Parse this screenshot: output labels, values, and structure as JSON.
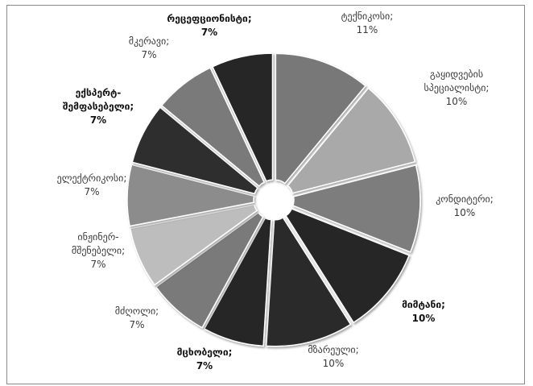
{
  "chart_data": {
    "type": "pie",
    "exploded": true,
    "title": "",
    "slices": [
      {
        "label": [
          "ტექნიკოსი;",
          "11%"
        ],
        "value": 11,
        "color": "#787878",
        "bold": false
      },
      {
        "label": [
          "გაყიდვების",
          "სპეციალისტი;",
          "10%"
        ],
        "value": 10,
        "color": "#a9a9a9",
        "bold": false
      },
      {
        "label": [
          "კონდიტერი;",
          "10%"
        ],
        "value": 10,
        "color": "#7d7d7d",
        "bold": false
      },
      {
        "label": [
          "მიმტანი;",
          "10%"
        ],
        "value": 10,
        "color": "#262626",
        "bold": true
      },
      {
        "label": [
          "მზარეული;",
          "10%"
        ],
        "value": 10,
        "color": "#2b2b2b",
        "bold": false
      },
      {
        "label": [
          "მცხობელი;",
          "7%"
        ],
        "value": 7,
        "color": "#262626",
        "bold": true
      },
      {
        "label": [
          "მძღოლი;",
          "7%"
        ],
        "value": 7,
        "color": "#7a7a7a",
        "bold": false
      },
      {
        "label": [
          "ინჟინერ-",
          "მშენებელი;",
          "7%"
        ],
        "value": 7,
        "color": "#bdbdbd",
        "bold": false
      },
      {
        "label": [
          "ელექტრიკოსი;",
          "7%"
        ],
        "value": 7,
        "color": "#8c8c8c",
        "bold": false
      },
      {
        "label": [
          "ექსპერტ-",
          "შემფასებელი;",
          "7%"
        ],
        "value": 7,
        "color": "#2d2d2d",
        "bold": true
      },
      {
        "label": [
          "მკერავი;",
          "7%"
        ],
        "value": 7,
        "color": "#7a7a7a",
        "bold": false
      },
      {
        "label": [
          "რეცეფციონისტი;",
          "7%"
        ],
        "value": 7,
        "color": "#262626",
        "bold": true
      }
    ]
  }
}
